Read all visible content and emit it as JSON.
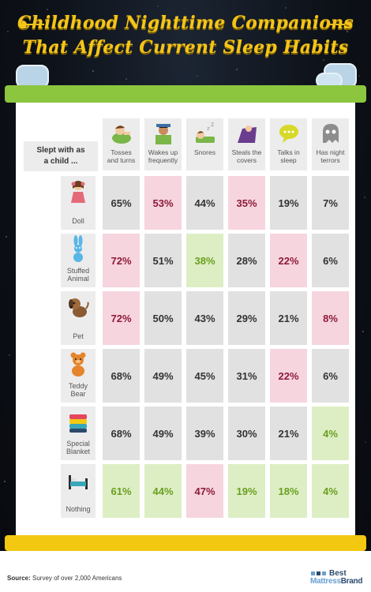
{
  "title": {
    "line1": "Childhood Nighttime Companions",
    "line2": "That Affect Current Sleep Habits"
  },
  "colors": {
    "accent_yellow": "#f5c518",
    "bar_green": "#8cc63f",
    "bar_yellow": "#f2c811",
    "highlight_red": "#8e1a3b",
    "highlight_green": "#6a9e1f"
  },
  "table": {
    "row_header": {
      "line1": "Slept with as",
      "line2": "a child ..."
    },
    "columns": [
      {
        "icon": "tossing-child-icon",
        "line1": "Tosses",
        "line2": "and turns"
      },
      {
        "icon": "waking-child-icon",
        "line1": "Wakes up",
        "line2": "frequently"
      },
      {
        "icon": "snoring-person-icon",
        "line1": "Snores",
        "line2": ""
      },
      {
        "icon": "cover-thief-icon",
        "line1": "Steals the",
        "line2": "covers"
      },
      {
        "icon": "speech-bubble-icon",
        "line1": "Talks in",
        "line2": "sleep"
      },
      {
        "icon": "ghost-icon",
        "line1": "Has night",
        "line2": "terrors"
      }
    ],
    "rows": [
      {
        "icon": "doll-icon",
        "line1": "Doll",
        "line2": "",
        "cells": [
          {
            "v": "65%",
            "s": ""
          },
          {
            "v": "53%",
            "s": "red"
          },
          {
            "v": "44%",
            "s": ""
          },
          {
            "v": "35%",
            "s": "red"
          },
          {
            "v": "19%",
            "s": ""
          },
          {
            "v": "7%",
            "s": ""
          }
        ]
      },
      {
        "icon": "stuffed-bunny-icon",
        "line1": "Stuffed",
        "line2": "Animal",
        "cells": [
          {
            "v": "72%",
            "s": "red"
          },
          {
            "v": "51%",
            "s": ""
          },
          {
            "v": "38%",
            "s": "green"
          },
          {
            "v": "28%",
            "s": ""
          },
          {
            "v": "22%",
            "s": "red"
          },
          {
            "v": "6%",
            "s": ""
          }
        ]
      },
      {
        "icon": "dog-icon",
        "line1": "Pet",
        "line2": "",
        "cells": [
          {
            "v": "72%",
            "s": "red"
          },
          {
            "v": "50%",
            "s": ""
          },
          {
            "v": "43%",
            "s": ""
          },
          {
            "v": "29%",
            "s": ""
          },
          {
            "v": "21%",
            "s": ""
          },
          {
            "v": "8%",
            "s": "red"
          }
        ]
      },
      {
        "icon": "teddy-bear-icon",
        "line1": "Teddy",
        "line2": "Bear",
        "cells": [
          {
            "v": "68%",
            "s": ""
          },
          {
            "v": "49%",
            "s": ""
          },
          {
            "v": "45%",
            "s": ""
          },
          {
            "v": "31%",
            "s": ""
          },
          {
            "v": "22%",
            "s": "red"
          },
          {
            "v": "6%",
            "s": ""
          }
        ]
      },
      {
        "icon": "folded-blanket-icon",
        "line1": "Special",
        "line2": "Blanket",
        "cells": [
          {
            "v": "68%",
            "s": ""
          },
          {
            "v": "49%",
            "s": ""
          },
          {
            "v": "39%",
            "s": ""
          },
          {
            "v": "30%",
            "s": ""
          },
          {
            "v": "21%",
            "s": ""
          },
          {
            "v": "4%",
            "s": "green"
          }
        ]
      },
      {
        "icon": "empty-bed-icon",
        "line1": "Nothing",
        "line2": "",
        "cells": [
          {
            "v": "61%",
            "s": "green"
          },
          {
            "v": "44%",
            "s": "green"
          },
          {
            "v": "47%",
            "s": "red"
          },
          {
            "v": "19%",
            "s": "green"
          },
          {
            "v": "18%",
            "s": "green"
          },
          {
            "v": "4%",
            "s": "green"
          }
        ]
      }
    ]
  },
  "footer": {
    "source_label": "Source:",
    "source_text": " Survey of over 2,000 Americans",
    "brand_top": "Best",
    "brand_mattress": "Mattress",
    "brand_brand": "Brand"
  }
}
